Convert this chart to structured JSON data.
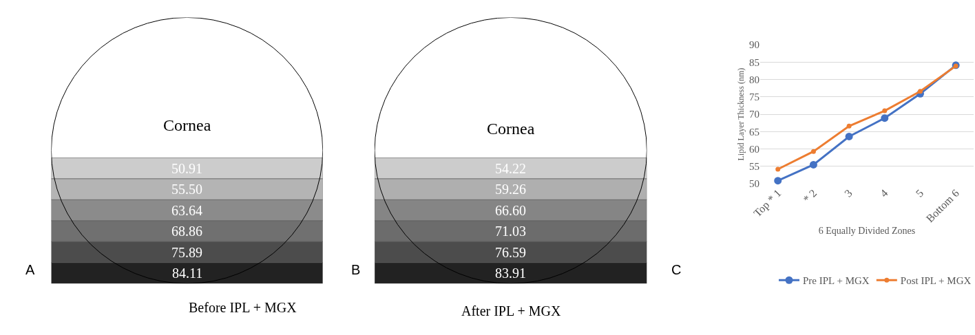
{
  "chart_data": [
    {
      "type": "other",
      "title": "Before IPL + MGX",
      "annotations": [
        "A",
        "Cornea"
      ],
      "values": [
        50.91,
        55.5,
        63.64,
        68.86,
        75.89,
        84.11
      ],
      "value_labels": [
        "50.91",
        "55.50",
        "63.64",
        "68.86",
        "75.89",
        "84.11"
      ]
    },
    {
      "type": "other",
      "title": "After IPL + MGX",
      "annotations": [
        "B",
        "Cornea"
      ],
      "values": [
        54.22,
        59.26,
        66.6,
        71.03,
        76.59,
        83.91
      ],
      "value_labels": [
        "54.22",
        "59.26",
        "66.60",
        "71.03",
        "76.59",
        "83.91"
      ]
    },
    {
      "type": "line",
      "xlabel": "6 Equally Divided Zones",
      "ylabel": "Lipid Layer Thickness (nm)",
      "annotations": [
        "C"
      ],
      "categories": [
        "Top * 1",
        "* 2",
        "3",
        "4",
        "5",
        "Bottom 6"
      ],
      "series": [
        {
          "name": "Pre IPL + MGX",
          "color": "#4472c4",
          "values": [
            50.9,
            55.5,
            63.6,
            68.9,
            75.9,
            84.1
          ]
        },
        {
          "name": "Post IPL + MGX",
          "color": "#ed7d31",
          "values": [
            54.2,
            59.3,
            66.6,
            71.0,
            76.6,
            83.9
          ]
        }
      ],
      "ylim": [
        50,
        90
      ],
      "yticks": [
        50,
        55,
        60,
        65,
        70,
        75,
        80,
        85,
        90
      ],
      "grid": "y",
      "legend": "bottom",
      "marker": "circle",
      "line_style": "solid"
    }
  ]
}
